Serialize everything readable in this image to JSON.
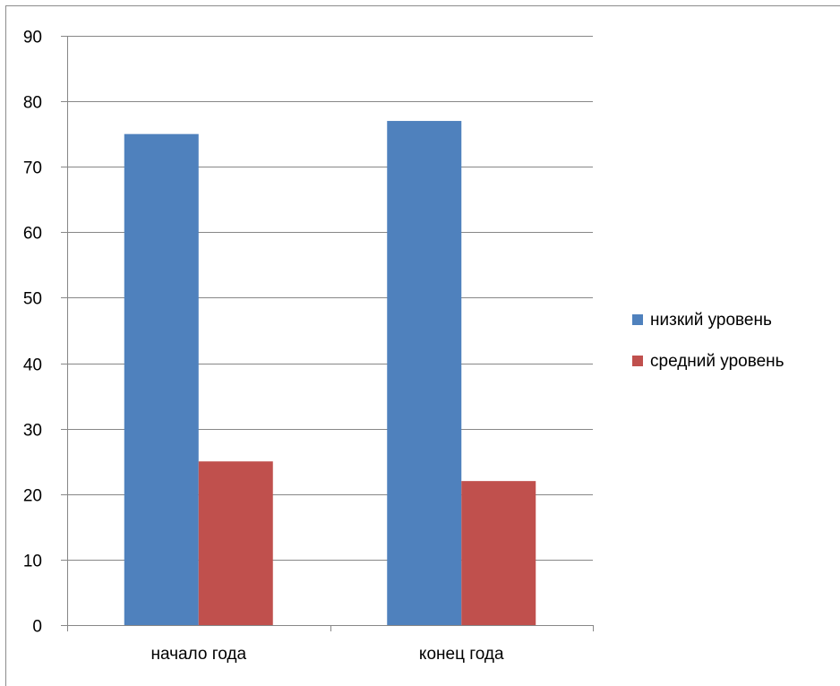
{
  "chart_data": {
    "type": "bar",
    "title": "",
    "xlabel": "",
    "ylabel": "",
    "categories": [
      "начало года",
      "конец года"
    ],
    "series": [
      {
        "name": "низкий уровень",
        "values": [
          75,
          77
        ],
        "color": "#4f81bd"
      },
      {
        "name": "средний уровень",
        "values": [
          25,
          22
        ],
        "color": "#c0504d"
      }
    ],
    "ylim": [
      0,
      90
    ],
    "y_ticks": [
      0,
      10,
      20,
      30,
      40,
      50,
      60,
      70,
      80,
      90
    ],
    "grid": true,
    "legend_position": "right"
  }
}
